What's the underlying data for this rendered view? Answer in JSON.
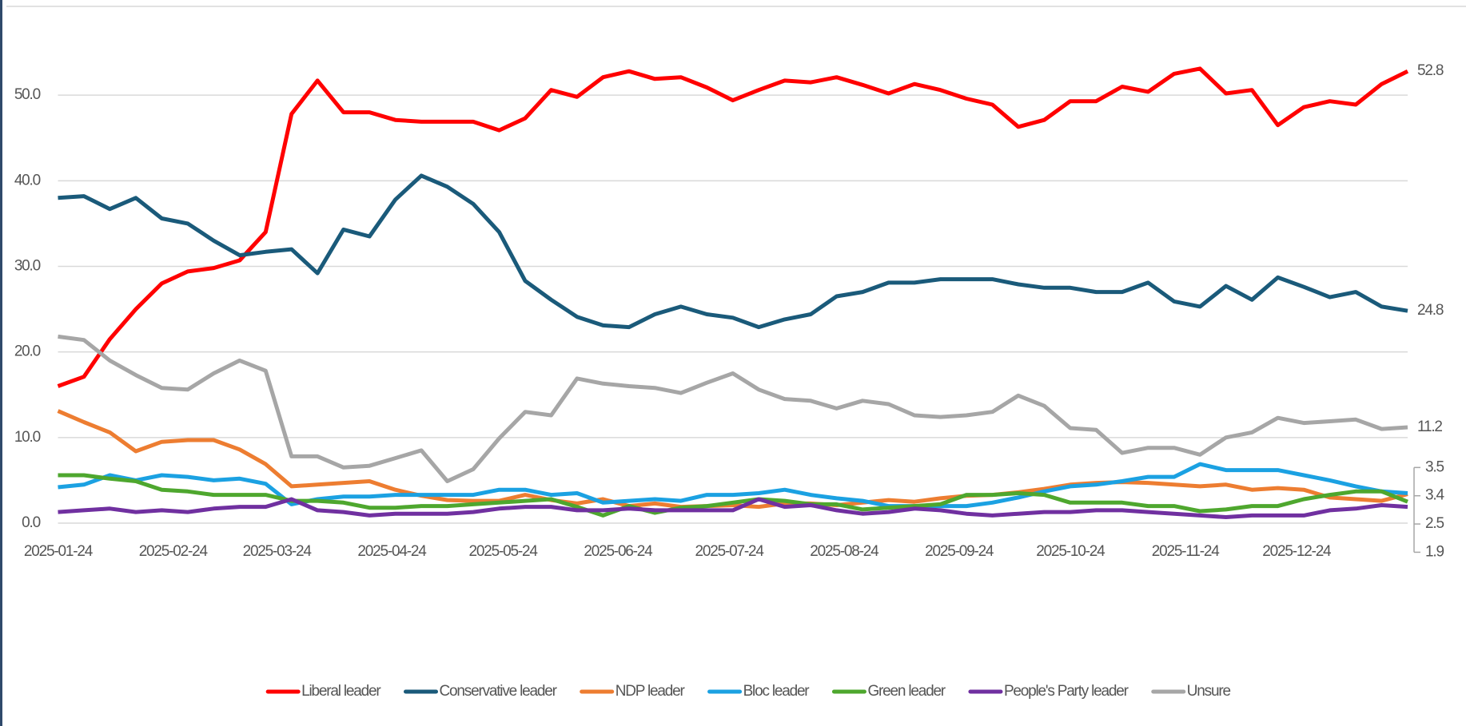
{
  "chart_data": {
    "type": "line",
    "x": [
      "2025-01-24",
      "2025-01-31",
      "2025-02-07",
      "2025-02-14",
      "2025-02-21",
      "2025-02-28",
      "2025-03-07",
      "2025-03-14",
      "2025-03-21",
      "2025-03-28",
      "2025-04-04",
      "2025-04-11",
      "2025-04-18",
      "2025-04-25",
      "2025-05-02",
      "2025-05-09",
      "2025-05-16",
      "2025-05-23",
      "2025-05-30",
      "2025-06-06",
      "2025-06-13",
      "2025-06-20",
      "2025-06-27",
      "2025-07-04",
      "2025-07-11",
      "2025-07-18",
      "2025-07-25",
      "2025-08-01",
      "2025-08-08",
      "2025-08-15",
      "2025-08-22",
      "2025-08-29",
      "2025-09-05",
      "2025-09-12",
      "2025-09-19",
      "2025-09-26",
      "2025-10-03",
      "2025-10-10",
      "2025-10-17",
      "2025-10-24",
      "2025-10-31",
      "2025-11-07",
      "2025-11-14",
      "2025-11-21",
      "2025-11-28",
      "2025-12-05",
      "2025-12-12",
      "2025-12-19",
      "2025-12-26",
      "2026-01-02",
      "2026-01-09",
      "2026-01-16",
      "2026-01-23"
    ],
    "xlim": [
      "2025-01-24",
      "2026-01-23"
    ],
    "xticks": [
      "2025-01-24",
      "2025-02-24",
      "2025-03-24",
      "2025-04-24",
      "2025-05-24",
      "2025-06-24",
      "2025-07-24",
      "2025-08-24",
      "2025-09-24",
      "2025-10-24",
      "2025-11-24",
      "2025-12-24"
    ],
    "ylim": [
      0,
      60
    ],
    "yticks": [
      {
        "value": 0,
        "label": "0.0"
      },
      {
        "value": 10,
        "label": "10.0"
      },
      {
        "value": 20,
        "label": "20.0"
      },
      {
        "value": 30,
        "label": "30.0"
      },
      {
        "value": 40,
        "label": "40.0"
      },
      {
        "value": 50,
        "label": "50.0"
      }
    ],
    "grid": true,
    "legend": "bottom",
    "series": [
      {
        "name": "Liberal leader",
        "color": "#ff0000",
        "values": [
          16,
          17.1,
          21.5,
          25,
          28,
          29.4,
          29.8,
          30.7,
          34,
          47.8,
          51.7,
          48,
          48,
          47.1,
          46.9,
          46.9,
          46.9,
          45.9,
          47.3,
          50.6,
          49.8,
          52.1,
          52.8,
          51.9,
          52.1,
          50.9,
          49.4,
          50.6,
          51.7,
          51.5,
          52.1,
          51.2,
          50.2,
          51.3,
          50.6,
          49.6,
          48.9,
          46.3,
          47.1,
          49.3,
          49.3,
          51,
          50.4,
          52.5,
          53.1,
          50.2,
          50.6,
          46.5,
          48.6,
          49.3,
          48.9,
          51.3,
          52.8
        ]
      },
      {
        "name": "Conservative leader",
        "color": "#1a5a7a",
        "values": [
          38,
          38.2,
          36.7,
          38,
          35.6,
          35,
          33,
          31.3,
          31.7,
          32,
          29.2,
          34.3,
          33.5,
          37.8,
          40.6,
          39.3,
          37.3,
          34,
          28.3,
          26.1,
          24.1,
          23.1,
          22.9,
          24.4,
          25.3,
          24.4,
          24,
          22.9,
          23.8,
          24.4,
          26.5,
          27,
          28.1,
          28.1,
          28.5,
          28.5,
          28.5,
          27.9,
          27.5,
          27.5,
          27,
          27,
          28.1,
          25.9,
          25.3,
          27.7,
          26.1,
          28.7,
          27.6,
          26.4,
          27,
          25.3,
          24.8
        ]
      },
      {
        "name": "NDP leader",
        "color": "#ed7d31",
        "values": [
          13.1,
          11.8,
          10.6,
          8.4,
          9.5,
          9.7,
          9.7,
          8.6,
          6.9,
          4.3,
          4.5,
          4.7,
          4.9,
          3.9,
          3.2,
          2.7,
          2.6,
          2.6,
          3.3,
          2.7,
          2.3,
          2.8,
          2,
          2.3,
          1.9,
          2,
          2.1,
          1.9,
          2.3,
          2.3,
          2.1,
          2.4,
          2.7,
          2.5,
          2.9,
          3.2,
          3.3,
          3.6,
          4,
          4.5,
          4.7,
          4.8,
          4.7,
          4.5,
          4.3,
          4.5,
          3.9,
          4.1,
          3.9,
          3,
          2.8,
          2.6,
          3.4
        ]
      },
      {
        "name": "Bloc leader",
        "color": "#1ba1e2",
        "values": [
          4.2,
          4.5,
          5.6,
          5,
          5.6,
          5.4,
          5,
          5.2,
          4.6,
          2.2,
          2.8,
          3.1,
          3.1,
          3.3,
          3.3,
          3.3,
          3.3,
          3.9,
          3.9,
          3.3,
          3.5,
          2.4,
          2.6,
          2.8,
          2.6,
          3.3,
          3.3,
          3.5,
          3.9,
          3.3,
          2.9,
          2.6,
          2,
          2,
          2,
          2,
          2.4,
          3,
          3.7,
          4.3,
          4.5,
          4.9,
          5.4,
          5.4,
          6.9,
          6.2,
          6.2,
          6.2,
          5.6,
          5,
          4.3,
          3.7,
          3.5
        ]
      },
      {
        "name": "Green leader",
        "color": "#4ea72e",
        "values": [
          5.6,
          5.6,
          5.2,
          4.9,
          3.9,
          3.7,
          3.3,
          3.3,
          3.3,
          2.6,
          2.6,
          2.4,
          1.8,
          1.8,
          2,
          2,
          2.2,
          2.4,
          2.6,
          2.8,
          1.9,
          0.9,
          2,
          1.2,
          1.8,
          2,
          2.4,
          2.8,
          2.6,
          2.2,
          2.2,
          1.6,
          1.8,
          2,
          2.2,
          3.3,
          3.3,
          3.5,
          3.3,
          2.4,
          2.4,
          2.4,
          2,
          2,
          1.4,
          1.6,
          2,
          2,
          2.8,
          3.3,
          3.7,
          3.7,
          2.5
        ]
      },
      {
        "name": "People's Party leader",
        "color": "#7030a0",
        "values": [
          1.3,
          1.5,
          1.7,
          1.3,
          1.5,
          1.3,
          1.7,
          1.9,
          1.9,
          2.8,
          1.5,
          1.3,
          0.9,
          1.1,
          1.1,
          1.1,
          1.3,
          1.7,
          1.9,
          1.9,
          1.5,
          1.5,
          1.7,
          1.5,
          1.5,
          1.5,
          1.5,
          2.8,
          1.9,
          2.1,
          1.5,
          1.1,
          1.3,
          1.7,
          1.5,
          1.1,
          0.9,
          1.1,
          1.3,
          1.3,
          1.5,
          1.5,
          1.3,
          1.1,
          0.9,
          0.7,
          0.9,
          0.9,
          0.9,
          1.5,
          1.7,
          2.1,
          1.9
        ]
      },
      {
        "name": "Unsure",
        "color": "#a6a6a6",
        "values": [
          21.8,
          21.4,
          19,
          17.3,
          15.8,
          15.6,
          17.5,
          19,
          17.8,
          7.8,
          7.8,
          6.5,
          6.7,
          7.6,
          8.5,
          4.9,
          6.3,
          9.9,
          13,
          12.6,
          16.9,
          16.3,
          16,
          15.8,
          15.2,
          16.4,
          17.5,
          15.6,
          14.5,
          14.3,
          13.4,
          14.3,
          13.9,
          12.6,
          12.4,
          12.6,
          13,
          14.9,
          13.7,
          11.1,
          10.9,
          8.2,
          8.8,
          8.8,
          8,
          10,
          10.6,
          12.3,
          11.7,
          11.9,
          12.1,
          11,
          11.2
        ]
      }
    ]
  }
}
